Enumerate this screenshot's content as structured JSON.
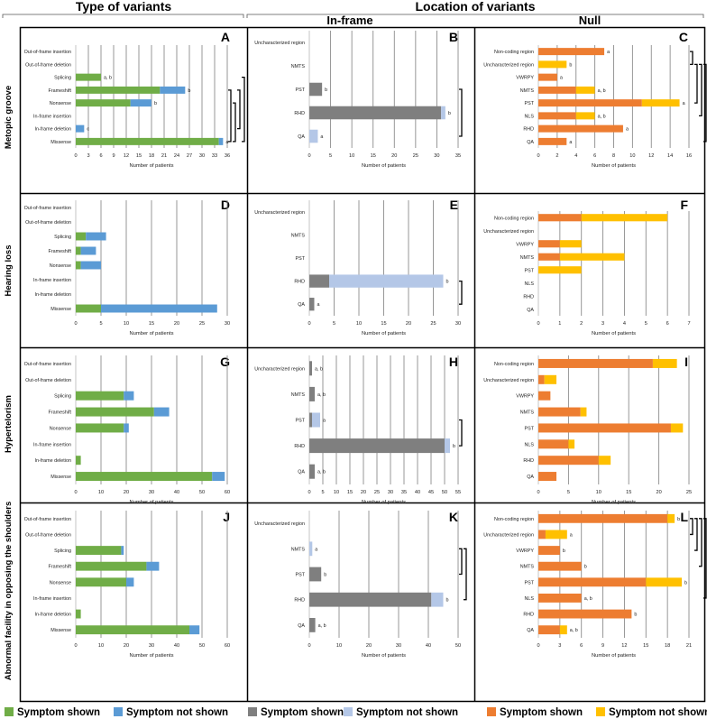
{
  "headers": {
    "type_of_variants": "Type of variants",
    "location_of_variants": "Location of variants",
    "in_frame": "In-frame",
    "null": "Null"
  },
  "legend": {
    "green_shown": "Symptom shown",
    "blue_not_shown": "Symptom not shown",
    "gray_shown": "Symptom shown",
    "lightblue_not_shown": "Symptom not shown",
    "orange_shown": "Symptom shown",
    "yellow_not_shown": "Symptom not shown"
  },
  "colors": {
    "green": "#70ad47",
    "blue": "#5b9bd5",
    "gray": "#7f7f7f",
    "lightblue": "#b4c7e7",
    "orange": "#ed7d31",
    "yellow": "#ffc000"
  },
  "row_titles": [
    "Metopic groove",
    "Hearing loss",
    "Hypertelorism",
    "Abnormal facility in opposing the shoulders"
  ],
  "chart_data": [
    {
      "id": "A",
      "type": "bar",
      "orientation": "horizontal",
      "stacked": true,
      "xlabel": "Number of patients",
      "xmax": 36,
      "ticks": [
        0,
        3,
        6,
        9,
        12,
        15,
        18,
        21,
        24,
        27,
        30,
        33,
        36
      ],
      "categories": [
        "Out-of-frame insertion",
        "Out-of-frame deletion",
        "Splicing",
        "Frameshift",
        "Nonsense",
        "In-frame insertion",
        "In-frame deletion",
        "Missense"
      ],
      "series": [
        {
          "name": "Symptom shown",
          "color": "green",
          "values": [
            0,
            0,
            6,
            20,
            13,
            0,
            0,
            34
          ]
        },
        {
          "name": "Symptom not shown",
          "color": "blue",
          "values": [
            0,
            0,
            0,
            6,
            5,
            0,
            2,
            1
          ]
        }
      ],
      "labels": [
        "",
        "",
        "a, b",
        "b",
        "b",
        "",
        "c",
        "a"
      ],
      "brackets": [
        {
          "from": 3,
          "to": 7,
          "col": 0
        },
        {
          "from": 4,
          "to": 7,
          "col": 1
        },
        {
          "from": 3,
          "to": 6,
          "col": 2
        },
        {
          "from": 2,
          "to": 7,
          "col": 3
        }
      ]
    },
    {
      "id": "B",
      "type": "bar",
      "orientation": "horizontal",
      "stacked": true,
      "xlabel": "Number of patients",
      "xmax": 35,
      "ticks": [
        0,
        5,
        10,
        15,
        20,
        25,
        30,
        35
      ],
      "categories": [
        "Uncharacterized region",
        "NMTS",
        "PST",
        "RHD",
        "QA"
      ],
      "series": [
        {
          "name": "Symptom shown",
          "color": "gray",
          "values": [
            0,
            0,
            3,
            31,
            0
          ]
        },
        {
          "name": "Symptom not shown",
          "color": "lightblue",
          "values": [
            0,
            0,
            0,
            1,
            2
          ]
        }
      ],
      "labels": [
        "",
        "",
        "b",
        "b",
        "a"
      ],
      "brackets": [
        {
          "from": 2,
          "to": 4,
          "col": 0
        }
      ]
    },
    {
      "id": "C",
      "type": "bar",
      "orientation": "horizontal",
      "stacked": true,
      "xlabel": "Number of patients",
      "xmax": 16,
      "ticks": [
        0,
        2,
        4,
        6,
        8,
        10,
        12,
        14,
        16
      ],
      "categories": [
        "Non-coding region",
        "Uncharacterized region",
        "VWRPY",
        "NMTS",
        "PST",
        "NLS",
        "RHD",
        "QA"
      ],
      "series": [
        {
          "name": "Symptom shown",
          "color": "orange",
          "values": [
            7,
            0,
            2,
            4,
            11,
            4,
            9,
            3
          ]
        },
        {
          "name": "Symptom not shown",
          "color": "yellow",
          "values": [
            0,
            3,
            0,
            2,
            4,
            2,
            0,
            0
          ]
        }
      ],
      "labels": [
        "a",
        "b",
        "a",
        "a, b",
        "a",
        "a, b",
        "a",
        "a"
      ],
      "brackets": [
        {
          "from": 0,
          "to": 1,
          "col": 0
        },
        {
          "from": 1,
          "to": 4,
          "col": 1
        },
        {
          "from": 1,
          "to": 5,
          "col": 2
        },
        {
          "from": 1,
          "to": 7,
          "col": 3
        }
      ]
    },
    {
      "id": "D",
      "type": "bar",
      "orientation": "horizontal",
      "stacked": true,
      "xlabel": "Number of patients",
      "xmax": 30,
      "ticks": [
        0,
        5,
        10,
        15,
        20,
        25,
        30
      ],
      "categories": [
        "Out-of-frame insertion",
        "Out-of-frame deletion",
        "Splicing",
        "Frameshift",
        "Nonsense",
        "In-frame insertion",
        "In-frame deletion",
        "Missense"
      ],
      "series": [
        {
          "name": "Symptom shown",
          "color": "green",
          "values": [
            0,
            0,
            2,
            1,
            1,
            0,
            0,
            5
          ]
        },
        {
          "name": "Symptom not shown",
          "color": "blue",
          "values": [
            0,
            0,
            4,
            3,
            4,
            0,
            0,
            23
          ]
        }
      ],
      "labels": [
        "",
        "",
        "",
        "",
        "",
        "",
        "",
        ""
      ],
      "brackets": []
    },
    {
      "id": "E",
      "type": "bar",
      "orientation": "horizontal",
      "stacked": true,
      "xlabel": "Number of patients",
      "xmax": 30,
      "ticks": [
        0,
        5,
        10,
        15,
        20,
        25,
        30
      ],
      "categories": [
        "Uncharacterized region",
        "NMTS",
        "PST",
        "RHD",
        "QA"
      ],
      "series": [
        {
          "name": "Symptom shown",
          "color": "gray",
          "values": [
            0,
            0,
            0,
            4,
            1
          ]
        },
        {
          "name": "Symptom not shown",
          "color": "lightblue",
          "values": [
            0,
            0,
            0,
            23,
            0
          ]
        }
      ],
      "labels": [
        "",
        "",
        "",
        "b",
        "a"
      ],
      "brackets": [
        {
          "from": 3,
          "to": 4,
          "col": 0
        }
      ]
    },
    {
      "id": "F",
      "type": "bar",
      "orientation": "horizontal",
      "stacked": true,
      "xlabel": "Number of patients",
      "xmax": 7,
      "ticks": [
        0,
        1,
        2,
        3,
        4,
        5,
        6,
        7
      ],
      "categories": [
        "Non-coding region",
        "Uncharacterized region",
        "VWRPY",
        "NMTS",
        "PST",
        "NLS",
        "RHD",
        "QA"
      ],
      "series": [
        {
          "name": "Symptom shown",
          "color": "orange",
          "values": [
            2,
            0,
            1,
            1,
            0,
            0,
            0,
            0
          ]
        },
        {
          "name": "Symptom not shown",
          "color": "yellow",
          "values": [
            4,
            0,
            1,
            3,
            2,
            0,
            0,
            0
          ]
        }
      ],
      "labels": [
        "",
        "",
        "",
        "",
        "",
        "",
        "",
        ""
      ],
      "brackets": []
    },
    {
      "id": "G",
      "type": "bar",
      "orientation": "horizontal",
      "stacked": true,
      "xlabel": "Number of patients",
      "xmax": 60,
      "ticks": [
        0,
        10,
        20,
        30,
        40,
        50,
        60
      ],
      "categories": [
        "Out-of-frame insertion",
        "Out-of-frame deletion",
        "Splicing",
        "Frameshift",
        "Nonsense",
        "In-frame insertion",
        "In-frame deletion",
        "Missense"
      ],
      "series": [
        {
          "name": "Symptom shown",
          "color": "green",
          "values": [
            0,
            0,
            19,
            31,
            19,
            0,
            2,
            54
          ]
        },
        {
          "name": "Symptom not shown",
          "color": "blue",
          "values": [
            0,
            0,
            4,
            6,
            2,
            0,
            0,
            5
          ]
        }
      ],
      "labels": [
        "",
        "",
        "",
        "",
        "",
        "",
        "",
        ""
      ],
      "brackets": []
    },
    {
      "id": "H",
      "type": "bar",
      "orientation": "horizontal",
      "stacked": true,
      "xlabel": "Number of patients",
      "xmax": 55,
      "ticks": [
        0,
        5,
        10,
        15,
        20,
        25,
        30,
        35,
        40,
        45,
        50,
        55
      ],
      "categories": [
        "Uncharacterized region",
        "NMTS",
        "PST",
        "RHD",
        "QA"
      ],
      "series": [
        {
          "name": "Symptom shown",
          "color": "gray",
          "values": [
            1,
            2,
            1,
            50,
            2
          ]
        },
        {
          "name": "Symptom not shown",
          "color": "lightblue",
          "values": [
            0,
            0,
            3,
            2,
            0
          ]
        }
      ],
      "labels": [
        "a, b",
        "a, b",
        "a",
        "b",
        "a, b"
      ],
      "brackets": [
        {
          "from": 2,
          "to": 3,
          "col": 0
        }
      ]
    },
    {
      "id": "I",
      "type": "bar",
      "orientation": "horizontal",
      "stacked": true,
      "xlabel": "Number of patients",
      "xmax": 25,
      "ticks": [
        0,
        5,
        10,
        15,
        20,
        25
      ],
      "categories": [
        "Non-coding region",
        "Uncharacterized region",
        "VWRPY",
        "NMTS",
        "PST",
        "NLS",
        "RHD",
        "QA"
      ],
      "series": [
        {
          "name": "Symptom shown",
          "color": "orange",
          "values": [
            19,
            1,
            2,
            7,
            22,
            5,
            10,
            3
          ]
        },
        {
          "name": "Symptom not shown",
          "color": "yellow",
          "values": [
            4,
            2,
            0,
            1,
            2,
            1,
            2,
            0
          ]
        }
      ],
      "labels": [
        "",
        "",
        "",
        "",
        "",
        "",
        "",
        ""
      ],
      "brackets": []
    },
    {
      "id": "J",
      "type": "bar",
      "orientation": "horizontal",
      "stacked": true,
      "xlabel": "Number of patients",
      "xmax": 60,
      "ticks": [
        0,
        10,
        20,
        30,
        40,
        50,
        60
      ],
      "categories": [
        "Out-of-frame insertion",
        "Out-of-frame deletion",
        "Splicing",
        "Frameshift",
        "Nonsense",
        "In-frame insertion",
        "In-frame deletion",
        "Missense"
      ],
      "series": [
        {
          "name": "Symptom shown",
          "color": "green",
          "values": [
            0,
            0,
            18,
            28,
            20,
            0,
            2,
            45
          ]
        },
        {
          "name": "Symptom not shown",
          "color": "blue",
          "values": [
            0,
            0,
            1,
            5,
            3,
            0,
            0,
            4
          ]
        }
      ],
      "labels": [
        "",
        "",
        "",
        "",
        "",
        "",
        "",
        ""
      ],
      "brackets": []
    },
    {
      "id": "K",
      "type": "bar",
      "orientation": "horizontal",
      "stacked": true,
      "xlabel": "Number of patients",
      "xmax": 50,
      "ticks": [
        0,
        10,
        20,
        30,
        40,
        50
      ],
      "categories": [
        "Uncharacterized region",
        "NMTS",
        "PST",
        "RHD",
        "QA"
      ],
      "series": [
        {
          "name": "Symptom shown",
          "color": "gray",
          "values": [
            0,
            0,
            4,
            41,
            2
          ]
        },
        {
          "name": "Symptom not shown",
          "color": "lightblue",
          "values": [
            0,
            1,
            0,
            4,
            0
          ]
        }
      ],
      "labels": [
        "",
        "a",
        "b",
        "b",
        "a, b"
      ],
      "brackets": [
        {
          "from": 1,
          "to": 2,
          "col": 0
        },
        {
          "from": 1,
          "to": 3,
          "col": 1
        }
      ]
    },
    {
      "id": "L",
      "type": "bar",
      "orientation": "horizontal",
      "stacked": true,
      "xlabel": "Number of patients",
      "xmax": 21,
      "ticks": [
        0,
        3,
        6,
        9,
        12,
        15,
        18,
        21
      ],
      "categories": [
        "Non-coding region",
        "Uncharacterized region",
        "VWRPY",
        "NMTS",
        "PST",
        "NLS",
        "RHD",
        "QA"
      ],
      "series": [
        {
          "name": "Symptom shown",
          "color": "orange",
          "values": [
            18,
            1,
            3,
            6,
            15,
            6,
            13,
            3
          ]
        },
        {
          "name": "Symptom not shown",
          "color": "yellow",
          "values": [
            1,
            3,
            0,
            0,
            5,
            0,
            0,
            1
          ]
        }
      ],
      "labels": [
        "b",
        "a",
        "b",
        "b",
        "b",
        "a, b",
        "b",
        "a, b"
      ],
      "brackets": [
        {
          "from": 0,
          "to": 1,
          "col": 0
        },
        {
          "from": 0,
          "to": 2,
          "col": 1
        },
        {
          "from": 0,
          "to": 3,
          "col": 2
        },
        {
          "from": 0,
          "to": 5,
          "col": 3
        },
        {
          "from": 0,
          "to": 7,
          "col": 4
        }
      ]
    }
  ]
}
